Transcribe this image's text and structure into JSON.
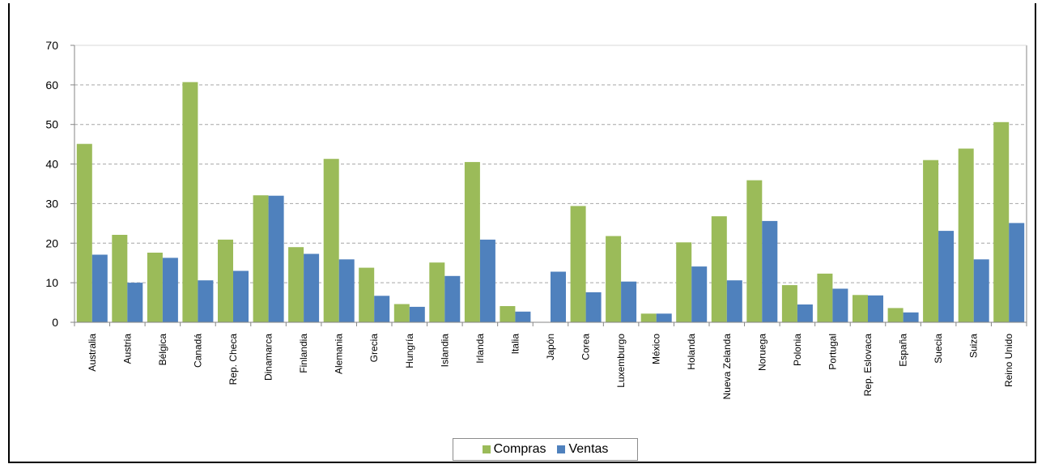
{
  "chart_data": {
    "type": "bar",
    "title": "",
    "xlabel": "",
    "ylabel": "",
    "ylim": [
      0,
      70
    ],
    "yticks": [
      0,
      10,
      20,
      30,
      40,
      50,
      60,
      70
    ],
    "grid": true,
    "legend_position": "bottom",
    "categories": [
      "Australia",
      "Austria",
      "Bélgica",
      "Canadá",
      "Rep. Checa",
      "Dinamarca",
      "Finlandia",
      "Alemania",
      "Grecia",
      "Hungría",
      "Islandia",
      "Irlanda",
      "Italia",
      "Japón",
      "Corea",
      "Luxemburgo",
      "México",
      "Holanda",
      "Nueva Zelanda",
      "Noruega",
      "Polonia",
      "Portugal",
      "Rep. Eslovaca",
      "España",
      "Suecia",
      "Suiza",
      "Reino Unido"
    ],
    "series": [
      {
        "name": "Compras",
        "color": "#9bbb59",
        "values": [
          45.1,
          22.1,
          17.6,
          60.7,
          20.9,
          32.1,
          19.0,
          41.3,
          13.8,
          4.6,
          15.1,
          40.5,
          4.1,
          null,
          29.4,
          21.8,
          2.2,
          20.2,
          26.8,
          35.9,
          9.4,
          12.3,
          6.9,
          3.6,
          41.0,
          43.9,
          50.6
        ]
      },
      {
        "name": "Ventas",
        "color": "#4f81bd",
        "values": [
          17.1,
          10.0,
          16.3,
          10.6,
          13.0,
          32.0,
          17.3,
          15.9,
          6.7,
          3.9,
          11.7,
          20.9,
          2.7,
          12.8,
          7.6,
          10.3,
          2.2,
          14.1,
          10.6,
          25.6,
          4.5,
          8.5,
          6.8,
          2.5,
          23.1,
          15.9,
          25.1
        ]
      }
    ]
  }
}
